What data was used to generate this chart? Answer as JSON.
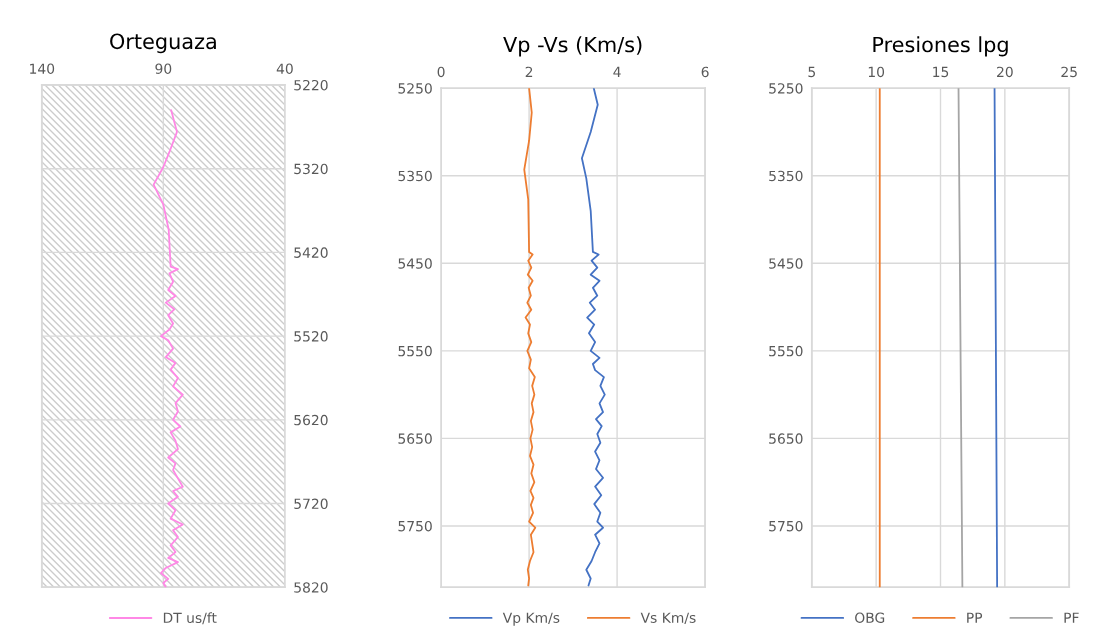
{
  "chart_data": [
    {
      "type": "line",
      "title": "Orteguaza",
      "xlim": [
        140,
        40
      ],
      "xticks": [
        140,
        90,
        40
      ],
      "ylim": [
        5820,
        5220
      ],
      "yticks": [
        5220,
        5320,
        5420,
        5520,
        5620,
        5720,
        5820
      ],
      "grid": true,
      "legend": "bottom",
      "series": [
        {
          "name": "DT us/ft",
          "color": "#ff88e6",
          "x": [
            86.8,
            84.4,
            87.5,
            90,
            94,
            90,
            87.8,
            87,
            84,
            87.5,
            86,
            88,
            85,
            89,
            85.5,
            88,
            86,
            87.5,
            91,
            88,
            86,
            89,
            85,
            87,
            84,
            86,
            82,
            85,
            84,
            86,
            83,
            87,
            85,
            84,
            88,
            85,
            86,
            84,
            82,
            86,
            84,
            88,
            85,
            87,
            82,
            86,
            84,
            87,
            85,
            88,
            84,
            89,
            91,
            88,
            90,
            89
          ],
          "values": [
            5250,
            5276,
            5300,
            5318,
            5339,
            5363,
            5393,
            5437,
            5440,
            5445,
            5455,
            5465,
            5472,
            5480,
            5488,
            5495,
            5505,
            5512,
            5520,
            5525,
            5535,
            5545,
            5552,
            5560,
            5570,
            5580,
            5590,
            5600,
            5610,
            5620,
            5628,
            5635,
            5645,
            5655,
            5665,
            5672,
            5680,
            5690,
            5700,
            5705,
            5712,
            5720,
            5728,
            5738,
            5745,
            5752,
            5760,
            5770,
            5778,
            5785,
            5790,
            5797,
            5803,
            5810,
            5815,
            5820
          ]
        }
      ]
    },
    {
      "type": "line",
      "title": "Vp -Vs (Km/s)",
      "xlim": [
        0,
        6
      ],
      "xticks": [
        0,
        2,
        4,
        6
      ],
      "ylim": [
        5820,
        5250
      ],
      "yticks": [
        5250,
        5350,
        5450,
        5550,
        5650,
        5750
      ],
      "grid": true,
      "legend": "bottom",
      "series": [
        {
          "name": "Vp Km/s",
          "color": "#4472c4",
          "x": [
            3.47,
            3.56,
            3.4,
            3.2,
            3.3,
            3.4,
            3.45,
            3.58,
            3.42,
            3.55,
            3.4,
            3.6,
            3.45,
            3.55,
            3.38,
            3.5,
            3.32,
            3.48,
            3.36,
            3.5,
            3.4,
            3.6,
            3.45,
            3.5,
            3.7,
            3.62,
            3.72,
            3.6,
            3.68,
            3.52,
            3.65,
            3.55,
            3.62,
            3.5,
            3.6,
            3.52,
            3.68,
            3.5,
            3.64,
            3.48,
            3.62,
            3.55,
            3.68,
            3.5,
            3.6,
            3.5,
            3.42,
            3.3,
            3.4,
            3.35
          ],
          "values": [
            5250,
            5269,
            5300,
            5330,
            5353,
            5390,
            5437,
            5440,
            5447,
            5455,
            5463,
            5470,
            5478,
            5487,
            5495,
            5503,
            5512,
            5520,
            5530,
            5540,
            5550,
            5558,
            5565,
            5572,
            5580,
            5590,
            5600,
            5610,
            5620,
            5628,
            5636,
            5645,
            5655,
            5665,
            5675,
            5685,
            5695,
            5705,
            5715,
            5725,
            5735,
            5745,
            5752,
            5760,
            5770,
            5780,
            5790,
            5800,
            5810,
            5818
          ]
        },
        {
          "name": "Vs Km/s",
          "color": "#ed7d31",
          "x": [
            2.0,
            2.06,
            2.0,
            1.89,
            1.98,
            2.0,
            2.08,
            1.98,
            2.05,
            1.97,
            2.08,
            1.99,
            2.04,
            1.96,
            2.05,
            1.92,
            2.02,
            1.98,
            2.05,
            1.96,
            2.04,
            2.0,
            2.13,
            2.07,
            2.12,
            2.06,
            2.1,
            2.04,
            2.08,
            2.03,
            2.07,
            2.02,
            2.1,
            2.05,
            2.12,
            2.03,
            2.1,
            2.04,
            2.09,
            2.0,
            2.14,
            2.04,
            2.07,
            2.1,
            2.02,
            1.97,
            2.0,
            1.98
          ],
          "values": [
            5250,
            5278,
            5310,
            5343,
            5377,
            5437,
            5440,
            5447,
            5455,
            5463,
            5470,
            5478,
            5487,
            5495,
            5503,
            5512,
            5520,
            5530,
            5540,
            5550,
            5560,
            5570,
            5580,
            5590,
            5600,
            5610,
            5620,
            5630,
            5640,
            5650,
            5660,
            5670,
            5680,
            5690,
            5700,
            5710,
            5718,
            5726,
            5735,
            5745,
            5752,
            5760,
            5770,
            5780,
            5790,
            5800,
            5810,
            5818
          ]
        }
      ]
    },
    {
      "type": "line",
      "title": "Presiones lpg",
      "xlim": [
        5,
        25
      ],
      "xticks": [
        5,
        10,
        15,
        20,
        25
      ],
      "ylim": [
        5820,
        5250
      ],
      "yticks": [
        5250,
        5350,
        5450,
        5550,
        5650,
        5750
      ],
      "grid": true,
      "legend": "bottom",
      "series": [
        {
          "name": "OBG",
          "color": "#4472c4",
          "x": [
            19.2,
            19.4
          ],
          "values": [
            5250,
            5820
          ]
        },
        {
          "name": "PP",
          "color": "#ed7d31",
          "x": [
            10.28,
            10.28
          ],
          "values": [
            5250,
            5820
          ]
        },
        {
          "name": "PF",
          "color": "#a5a5a5",
          "x": [
            16.4,
            16.7
          ],
          "values": [
            5250,
            5820
          ]
        }
      ]
    }
  ]
}
